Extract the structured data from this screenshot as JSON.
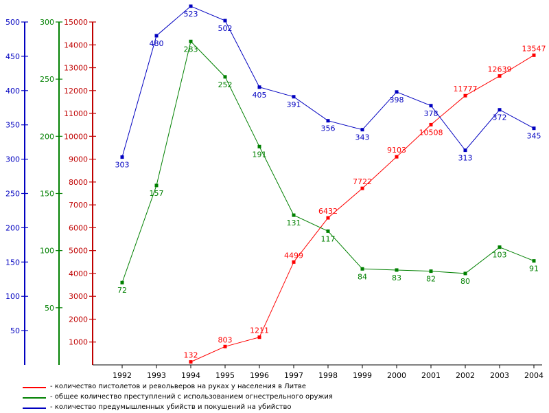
{
  "chart_data": {
    "type": "line",
    "x": [
      1992,
      1993,
      1994,
      1995,
      1996,
      1997,
      1998,
      1999,
      2000,
      2001,
      2002,
      2003,
      2004
    ],
    "series": [
      {
        "name": "- количество пистолетов и револьверов на руках у населения в Литве",
        "axis": "red",
        "color": "#ff0000",
        "values": [
          null,
          null,
          132,
          803,
          1211,
          4499,
          6432,
          7722,
          9103,
          10508,
          11777,
          12639,
          13547
        ]
      },
      {
        "name": "- общее количество преступлений с использованием огнестрельного оружия",
        "axis": "green",
        "color": "#008000",
        "values": [
          72,
          157,
          283,
          252,
          191,
          131,
          117,
          84,
          83,
          82,
          80,
          103,
          91
        ]
      },
      {
        "name": "- количество предумышленных убийств и покушений на убийство",
        "axis": "blue",
        "color": "#0000c0",
        "values": [
          303,
          480,
          523,
          502,
          405,
          391,
          356,
          343,
          398,
          378,
          313,
          372,
          345
        ]
      }
    ],
    "axes": {
      "blue": {
        "color": "#0000c0",
        "range": [
          0,
          500
        ],
        "ticks": [
          50,
          100,
          150,
          200,
          250,
          300,
          350,
          400,
          450,
          500
        ]
      },
      "green": {
        "color": "#008000",
        "range": [
          0,
          300
        ],
        "ticks": [
          50,
          100,
          150,
          200,
          250,
          300
        ]
      },
      "red": {
        "color": "#c00000",
        "range": [
          0,
          15000
        ],
        "ticks": [
          1000,
          2000,
          3000,
          4000,
          5000,
          6000,
          7000,
          8000,
          9000,
          10000,
          11000,
          12000,
          13000,
          14000,
          15000
        ]
      }
    },
    "grid": false,
    "legend_position": "bottom-left"
  }
}
